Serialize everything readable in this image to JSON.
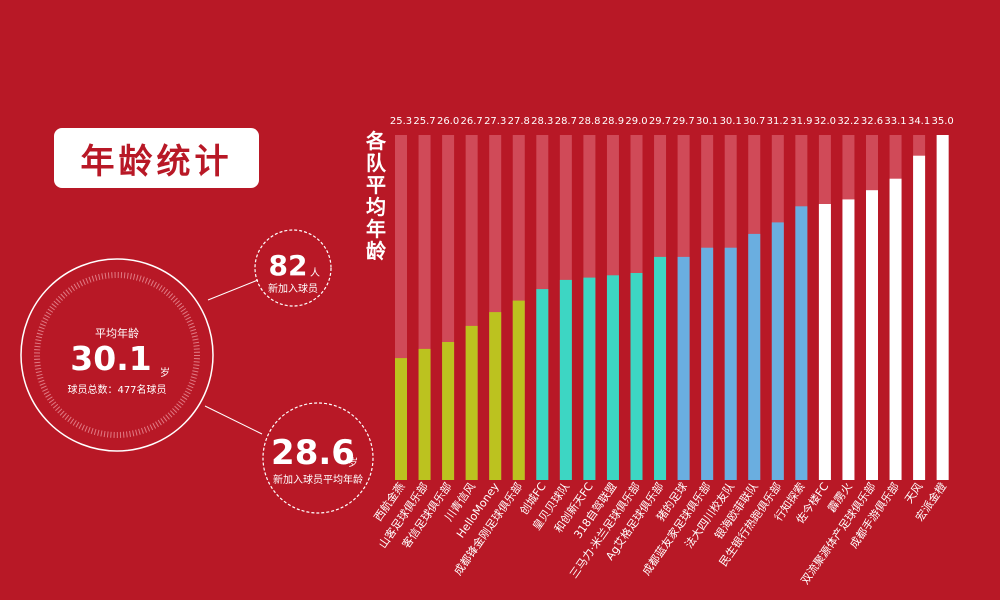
{
  "title": "年龄统计",
  "stats": {
    "main": {
      "label": "平均年龄",
      "value": "30.1",
      "unit": "岁",
      "total": "球员总数：477名球员"
    },
    "new_players": {
      "value": "82",
      "unit": "人",
      "label": "新加入球员"
    },
    "new_avg_age": {
      "value": "28.6",
      "unit": "岁",
      "label": "新加入球员平均年龄"
    }
  },
  "colors": {
    "background": "#b81826",
    "track": "#d04a58",
    "olive": "#bcc21f",
    "teal": "#3dd6c3",
    "blue": "#6aaee0",
    "white": "#ffffff"
  },
  "chart_data": {
    "type": "bar",
    "ylabel": "各队平均年龄",
    "ylim": [
      20,
      35
    ],
    "categories": [
      "西航金燕",
      "山客足球俱乐部",
      "客信足球俱乐部",
      "川青信风",
      "HelloMoney",
      "成都锋金刚足球俱乐部",
      "创城FC",
      "皇贝贝球队",
      "和创新天FC",
      "318自驾联盟",
      "三马力·米兰足球俱乐部",
      "Ag艾格足球俱乐部",
      "猪的足球",
      "成都蓝友家足球俱乐部",
      "法大四川校友队",
      "银海欧菲联队",
      "民生银行热跑俱乐部",
      "行知探索",
      "佐今楼FC",
      "霹雳火",
      "双流聚源体产足球俱乐部",
      "成都手游俱乐部",
      "天风",
      "宏派金橙"
    ],
    "values": [
      25.3,
      25.7,
      26.0,
      26.7,
      27.3,
      27.8,
      28.3,
      28.7,
      28.8,
      28.9,
      29.0,
      29.7,
      29.7,
      30.1,
      30.1,
      30.7,
      31.2,
      31.9,
      32.0,
      32.2,
      32.6,
      33.1,
      34.1,
      35.0
    ],
    "value_labels": [
      "25.3",
      "25.7",
      "26.0",
      "26.7",
      "27.3",
      "27.8",
      "28.3",
      "28.7",
      "28.8",
      "28.9",
      "29.0",
      "29.7",
      "29.7",
      "30.1",
      "30.1",
      "30.7",
      "31.2",
      "31.9",
      "32.0",
      "32.2",
      "32.6",
      "33.1",
      "34.1",
      "35.0"
    ],
    "color_groups": [
      "olive",
      "olive",
      "olive",
      "olive",
      "olive",
      "olive",
      "teal",
      "teal",
      "teal",
      "teal",
      "teal",
      "teal",
      "blue",
      "blue",
      "blue",
      "blue",
      "blue",
      "blue",
      "white",
      "white",
      "white",
      "white",
      "white",
      "white"
    ]
  }
}
